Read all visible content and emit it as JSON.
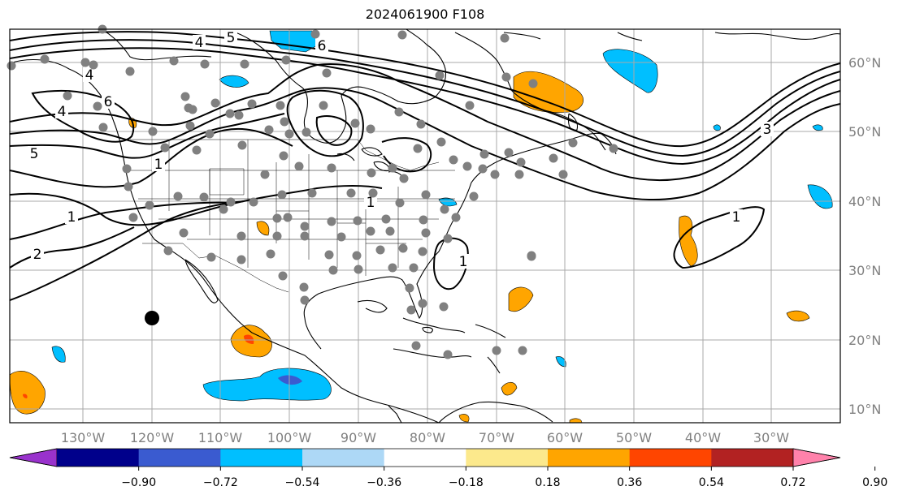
{
  "title": "2024061900 F108",
  "lon_labels": [
    "130°W",
    "120°W",
    "110°W",
    "100°W",
    "90°W",
    "80°W",
    "70°W",
    "60°W",
    "50°W",
    "40°W",
    "30°W"
  ],
  "lat_labels": [
    "60°N",
    "50°N",
    "40°N",
    "30°N",
    "20°N",
    "10°N"
  ],
  "contour_labels": [
    "4",
    "5",
    "6",
    "4",
    "6",
    "4",
    "5",
    "1",
    "1",
    "2",
    "1",
    "1",
    "3",
    "1"
  ],
  "colorbar": {
    "colors": [
      "#9932cc",
      "#00008b",
      "#3a5bd0",
      "#00bfff",
      "#add8f6",
      "#ffffff",
      "#fce98c",
      "#ffa500",
      "#ff4500",
      "#b22222",
      "#ff82ab"
    ],
    "ticks": [
      "−0.90",
      "−0.72",
      "−0.54",
      "−0.36",
      "−0.18",
      "0.18",
      "0.36",
      "0.54",
      "0.72",
      "0.90"
    ]
  },
  "station_color": "#808080",
  "marker_color": "#000000"
}
